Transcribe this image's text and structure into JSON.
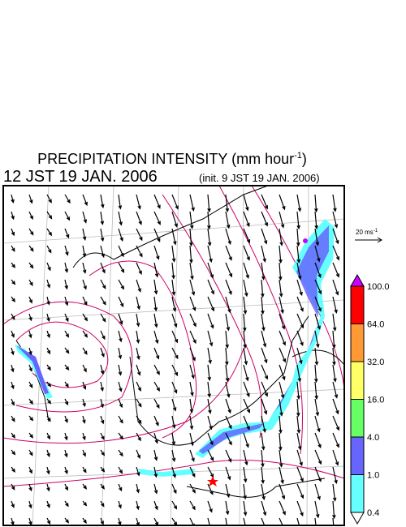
{
  "header": {
    "title": "PRECIPITATION INTENSITY (mm hour",
    "title_exponent": "-1",
    "title_close": ")",
    "valid_time": "12 JST 19 JAN. 2006",
    "init_time": "(init. 9 JST 19 JAN. 2006)"
  },
  "vector_legend": {
    "label": "20 ms",
    "exponent": "-1"
  },
  "colorbar": {
    "labels": [
      "0.4",
      "1.0",
      "4.0",
      "16.0",
      "32.0",
      "64.0",
      "100.0"
    ],
    "colors": [
      "#ffffff",
      "#66ffff",
      "#6666ff",
      "#66ff66",
      "#ffff66",
      "#ff9933",
      "#ff0000",
      "#cc00ff"
    ]
  }
}
